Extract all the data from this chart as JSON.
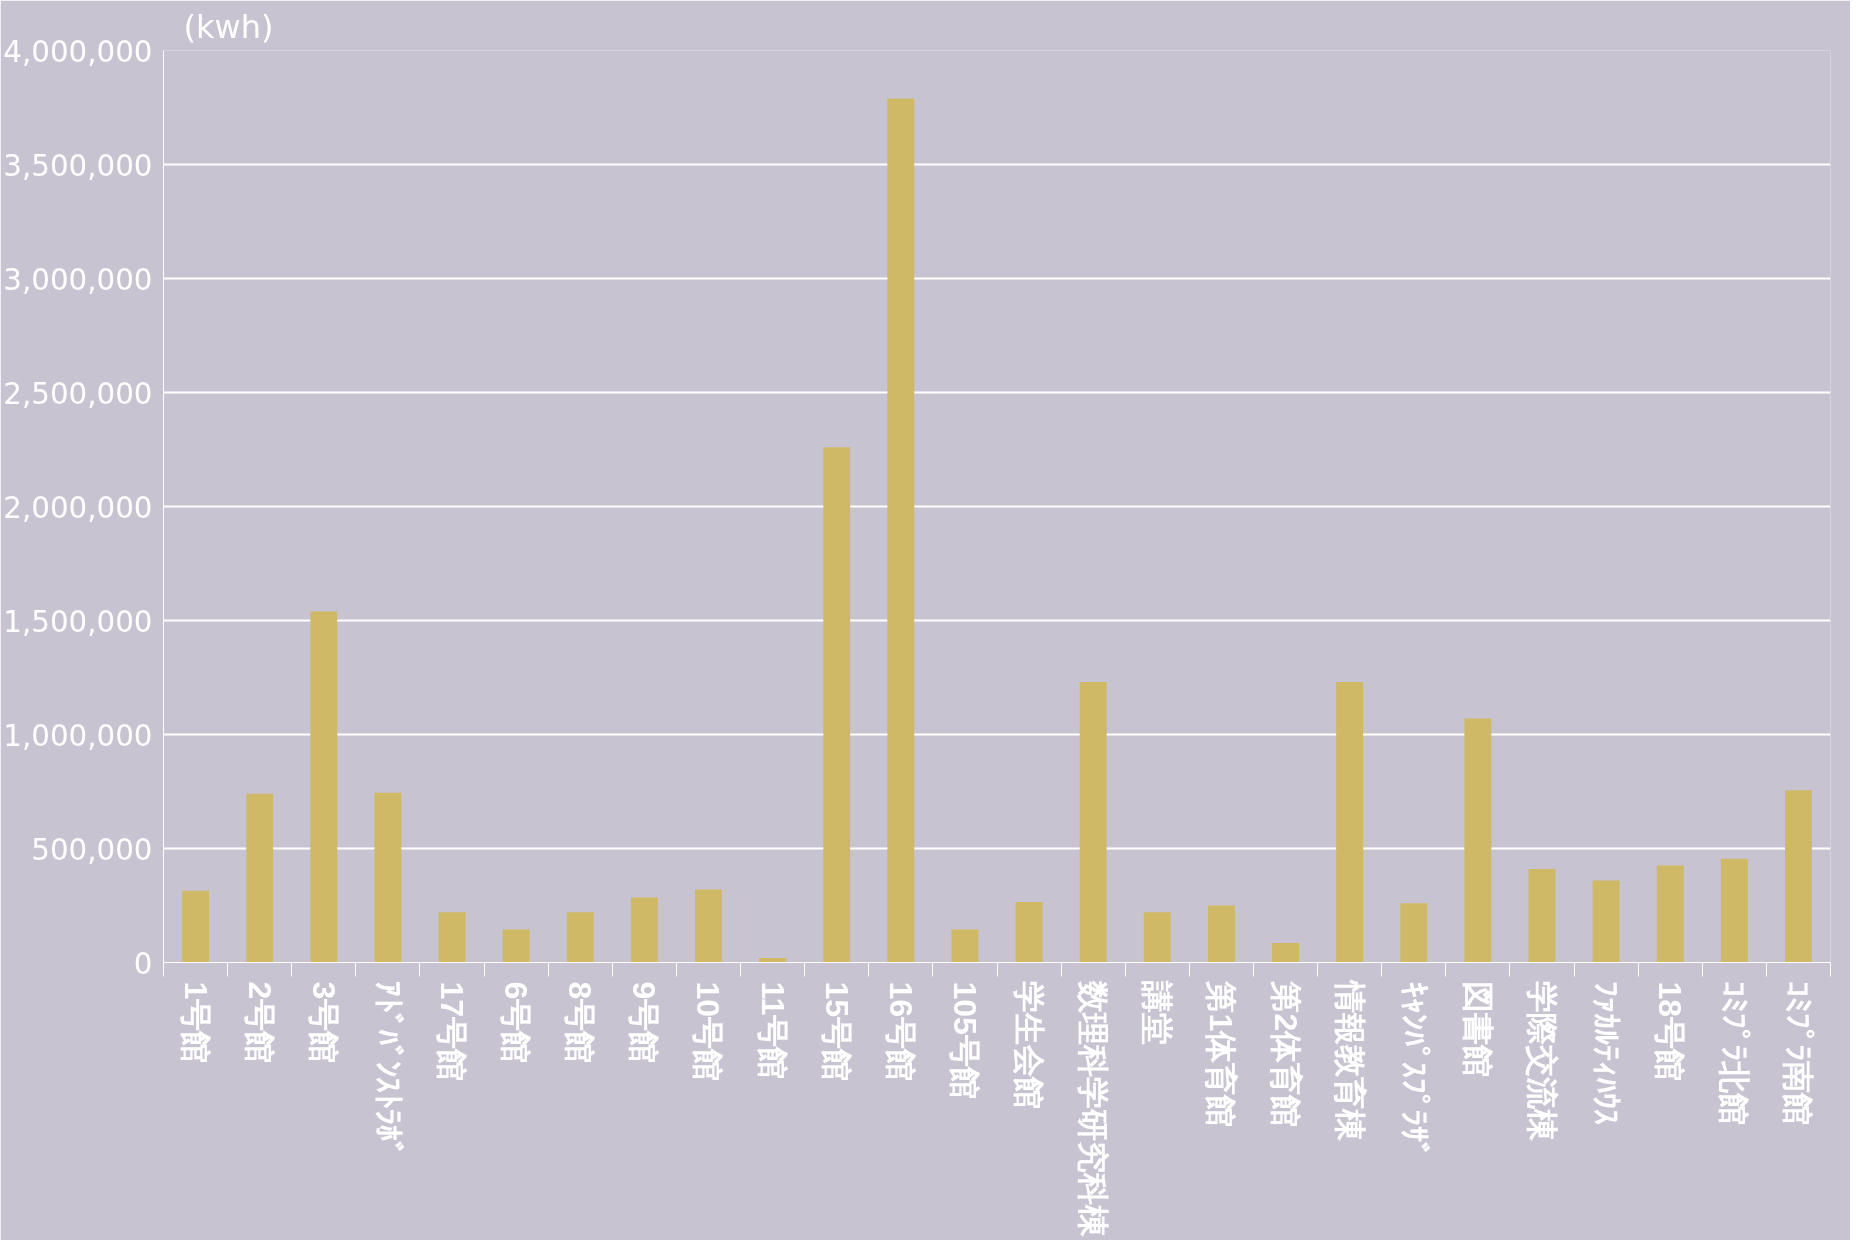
{
  "chart_data": {
    "type": "bar",
    "ylabel": "(kwh)",
    "categories": [
      "1号館",
      "2号館",
      "3号館",
      "ｱﾄﾞﾊﾞﾝｽﾄﾗﾎﾞ",
      "17号館",
      "6号館",
      "8号館",
      "9号館",
      "10号館",
      "11号館",
      "15号館",
      "16号館",
      "105号館",
      "学生会館",
      "数理科学研究科棟",
      "講堂",
      "第1体育館",
      "第2体育館",
      "情報教育棟",
      "ｷｬﾝﾊﾟｽﾌﾟﾗｻﾞ",
      "図書館",
      "学際交流棟",
      "ﾌｧｶﾙﾃｨﾊｳｽ",
      "18号館",
      "ｺﾐﾌﾟﾗ北館",
      "ｺﾐﾌﾟﾗ南館"
    ],
    "values": [
      315000,
      740000,
      1540000,
      745000,
      220000,
      145000,
      220000,
      285000,
      320000,
      20000,
      2260000,
      3790000,
      145000,
      265000,
      1230000,
      220000,
      250000,
      85000,
      1230000,
      260000,
      1070000,
      410000,
      360000,
      425000,
      455000,
      755000
    ],
    "color": "#cfb967",
    "ylim": [
      0,
      4000000
    ],
    "yticks": [
      {
        "value": 0,
        "label": "0"
      },
      {
        "value": 500000,
        "label": "500,000"
      },
      {
        "value": 1000000,
        "label": "1,000,000"
      },
      {
        "value": 1500000,
        "label": "1,500,000"
      },
      {
        "value": 2000000,
        "label": "2,000,000"
      },
      {
        "value": 2500000,
        "label": "2,500,000"
      },
      {
        "value": 3000000,
        "label": "3,000,000"
      },
      {
        "value": 3500000,
        "label": "3,500,000"
      },
      {
        "value": 4000000,
        "label": "4,000,000"
      }
    ],
    "grid": "y"
  }
}
